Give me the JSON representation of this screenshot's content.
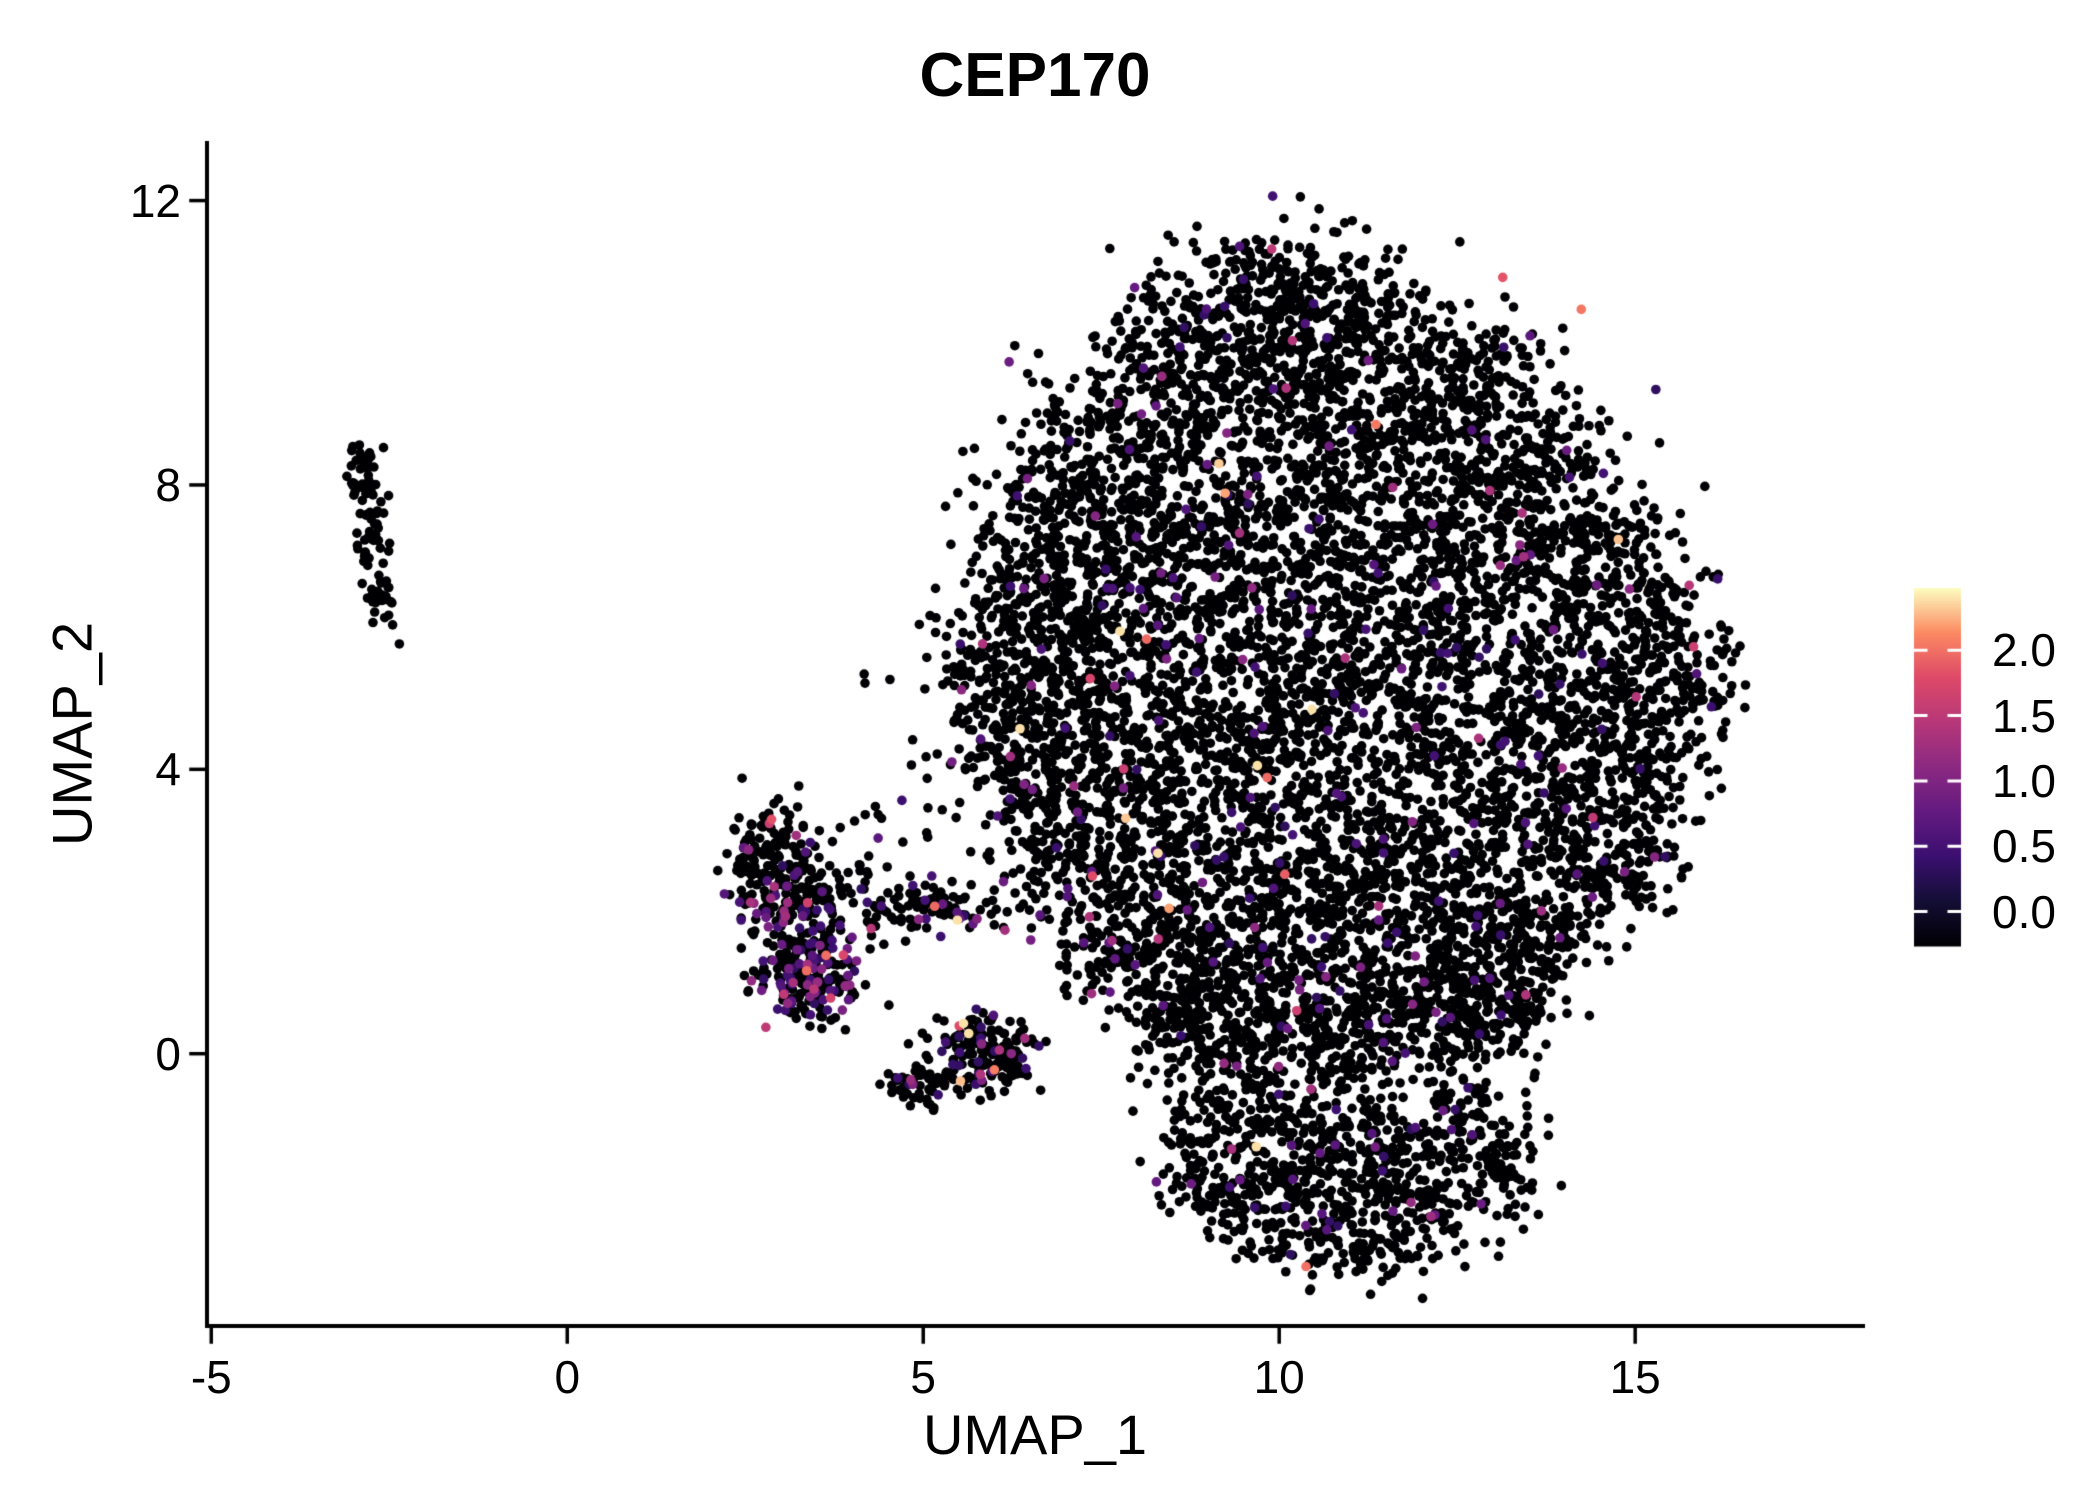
{
  "chart_data": {
    "type": "scatter",
    "title": "CEP170",
    "xlabel": "UMAP_1",
    "ylabel": "UMAP_2",
    "xlim": [
      -5.06,
      18.2
    ],
    "ylim": [
      -3.83,
      12.81
    ],
    "x_ticks": [
      -5,
      0,
      5,
      10,
      15
    ],
    "x_tick_labels": [
      "-5",
      "0",
      "5",
      "10",
      "15"
    ],
    "y_ticks": [
      0,
      4,
      8,
      12
    ],
    "y_tick_labels": [
      "0",
      "4",
      "8",
      "12"
    ],
    "grid": false,
    "point_color_default": "#000004",
    "point_radius_px": 4.8,
    "colorbar": {
      "position": "right",
      "tick_values": [
        2.0,
        1.5,
        1.0,
        0.5,
        0.0
      ],
      "tick_labels": [
        "2.0",
        "1.5",
        "1.0",
        "0.5",
        "0.0"
      ],
      "bar_value_top": 2.48,
      "bar_value_bottom": -0.26,
      "colormap": "magma",
      "colormap_stops": [
        "#000004",
        "#140e36",
        "#3b0f70",
        "#641a80",
        "#8c2981",
        "#b73779",
        "#de4968",
        "#fc8961",
        "#fcfdbf"
      ]
    },
    "colored_value_min": 0.3,
    "colored_value_max": 2.4,
    "clusters": [
      {
        "name": "left-satellite",
        "blobs": [
          [
            -2.85,
            8.1,
            0.13,
            0.35,
            45,
            0.02
          ],
          [
            -2.75,
            7.3,
            0.12,
            0.3,
            30,
            0.02
          ],
          [
            -2.62,
            6.35,
            0.1,
            0.25,
            30,
            0.02
          ]
        ]
      },
      {
        "name": "mid-left",
        "blobs": [
          [
            2.75,
            2.9,
            0.3,
            0.35,
            80,
            0.1
          ],
          [
            3.05,
            2.3,
            0.4,
            0.4,
            150,
            0.12
          ],
          [
            3.25,
            1.25,
            0.35,
            0.4,
            170,
            0.3
          ],
          [
            3.5,
            0.9,
            0.3,
            0.25,
            80,
            0.35
          ],
          [
            4.4,
            2.15,
            0.55,
            0.25,
            70,
            0.15
          ],
          [
            5.5,
            2.05,
            0.45,
            0.18,
            60,
            0.12
          ],
          [
            5.75,
            0.05,
            0.4,
            0.3,
            130,
            0.12
          ],
          [
            6.1,
            -0.1,
            0.25,
            0.25,
            60,
            0.1
          ],
          [
            4.95,
            -0.5,
            0.25,
            0.15,
            45,
            0.15
          ],
          [
            4.3,
            3.0,
            0.5,
            0.5,
            12,
            0.2
          ]
        ]
      },
      {
        "name": "main",
        "blobs": [
          [
            9.7,
            10.9,
            0.8,
            0.45,
            150,
            0.02
          ],
          [
            10.9,
            10.5,
            0.7,
            0.45,
            130,
            0.02
          ],
          [
            8.7,
            10.1,
            0.6,
            0.45,
            120,
            0.02
          ],
          [
            9.9,
            9.9,
            0.8,
            0.5,
            150,
            0.02
          ],
          [
            11.6,
            9.8,
            0.8,
            0.5,
            150,
            0.02
          ],
          [
            12.8,
            9.4,
            0.6,
            0.5,
            110,
            0.02
          ],
          [
            7.9,
            9.0,
            0.7,
            0.6,
            170,
            0.03
          ],
          [
            9.3,
            8.8,
            0.8,
            0.6,
            180,
            0.03
          ],
          [
            10.9,
            8.7,
            0.8,
            0.6,
            170,
            0.03
          ],
          [
            12.4,
            8.5,
            0.7,
            0.6,
            160,
            0.03
          ],
          [
            13.6,
            8.4,
            0.6,
            0.5,
            130,
            0.03
          ],
          [
            7.0,
            7.8,
            0.6,
            0.6,
            170,
            0.03
          ],
          [
            8.4,
            7.6,
            0.8,
            0.6,
            190,
            0.03
          ],
          [
            10.0,
            7.4,
            0.8,
            0.6,
            180,
            0.03
          ],
          [
            11.7,
            7.3,
            0.8,
            0.6,
            180,
            0.03
          ],
          [
            13.3,
            7.2,
            0.7,
            0.6,
            170,
            0.03
          ],
          [
            14.6,
            7.3,
            0.5,
            0.5,
            120,
            0.03
          ],
          [
            6.4,
            6.6,
            0.5,
            0.6,
            150,
            0.03
          ],
          [
            7.7,
            6.4,
            0.7,
            0.6,
            180,
            0.03
          ],
          [
            9.2,
            6.2,
            0.8,
            0.6,
            180,
            0.04
          ],
          [
            10.9,
            6.1,
            0.8,
            0.6,
            180,
            0.04
          ],
          [
            12.6,
            6.0,
            0.8,
            0.6,
            180,
            0.03
          ],
          [
            14.2,
            6.1,
            0.6,
            0.6,
            150,
            0.03
          ],
          [
            15.5,
            6.2,
            0.35,
            0.55,
            90,
            0.03
          ],
          [
            5.9,
            5.4,
            0.4,
            0.5,
            110,
            0.03
          ],
          [
            7.0,
            5.2,
            0.6,
            0.6,
            170,
            0.03
          ],
          [
            8.5,
            4.9,
            0.8,
            0.6,
            180,
            0.04
          ],
          [
            10.2,
            4.8,
            0.8,
            0.6,
            180,
            0.05
          ],
          [
            11.9,
            4.7,
            0.8,
            0.6,
            180,
            0.04
          ],
          [
            13.6,
            4.7,
            0.7,
            0.6,
            170,
            0.03
          ],
          [
            15.0,
            4.9,
            0.5,
            0.6,
            130,
            0.03
          ],
          [
            15.9,
            5.1,
            0.25,
            0.45,
            60,
            0.03
          ],
          [
            6.3,
            4.2,
            0.5,
            0.5,
            130,
            0.03
          ],
          [
            7.5,
            3.9,
            0.7,
            0.6,
            170,
            0.03
          ],
          [
            9.0,
            3.6,
            0.8,
            0.6,
            180,
            0.04
          ],
          [
            10.7,
            3.4,
            0.8,
            0.6,
            180,
            0.05
          ],
          [
            12.4,
            3.4,
            0.8,
            0.6,
            180,
            0.04
          ],
          [
            14.0,
            3.5,
            0.6,
            0.6,
            150,
            0.03
          ],
          [
            15.2,
            3.8,
            0.4,
            0.5,
            100,
            0.03
          ],
          [
            6.9,
            2.9,
            0.5,
            0.5,
            130,
            0.03
          ],
          [
            8.1,
            2.6,
            0.7,
            0.5,
            160,
            0.03
          ],
          [
            9.6,
            2.3,
            0.8,
            0.5,
            170,
            0.04
          ],
          [
            11.2,
            2.2,
            0.8,
            0.5,
            170,
            0.04
          ],
          [
            12.8,
            2.2,
            0.7,
            0.5,
            160,
            0.03
          ],
          [
            14.2,
            2.4,
            0.5,
            0.5,
            120,
            0.03
          ],
          [
            15.1,
            2.7,
            0.3,
            0.35,
            60,
            0.03
          ],
          [
            7.7,
            1.6,
            0.5,
            0.45,
            130,
            0.03
          ],
          [
            8.9,
            1.3,
            0.7,
            0.45,
            160,
            0.04
          ],
          [
            10.4,
            1.1,
            0.7,
            0.45,
            160,
            0.04
          ],
          [
            11.9,
            1.1,
            0.7,
            0.45,
            160,
            0.04
          ],
          [
            13.3,
            1.3,
            0.5,
            0.4,
            120,
            0.03
          ],
          [
            8.6,
            0.5,
            0.5,
            0.4,
            120,
            0.04
          ],
          [
            9.8,
            0.2,
            0.7,
            0.4,
            150,
            0.05
          ],
          [
            11.3,
            0.2,
            0.7,
            0.4,
            150,
            0.04
          ],
          [
            12.6,
            0.4,
            0.5,
            0.35,
            110,
            0.03
          ],
          [
            13.4,
            0.6,
            0.3,
            0.3,
            60,
            0.03
          ]
        ]
      },
      {
        "name": "bottom-lobe",
        "blobs": [
          [
            9.3,
            -0.9,
            0.45,
            0.45,
            110,
            0.04
          ],
          [
            10.3,
            -1.2,
            0.55,
            0.45,
            130,
            0.04
          ],
          [
            11.5,
            -1.3,
            0.55,
            0.45,
            130,
            0.04
          ],
          [
            12.6,
            -1.0,
            0.4,
            0.4,
            90,
            0.04
          ],
          [
            9.7,
            -2.1,
            0.45,
            0.4,
            100,
            0.04
          ],
          [
            10.8,
            -2.3,
            0.55,
            0.4,
            110,
            0.05
          ],
          [
            12.0,
            -2.1,
            0.5,
            0.4,
            100,
            0.05
          ],
          [
            13.0,
            -1.6,
            0.35,
            0.4,
            70,
            0.03
          ],
          [
            8.9,
            -1.7,
            0.3,
            0.35,
            60,
            0.03
          ],
          [
            11.3,
            -2.8,
            0.5,
            0.2,
            60,
            0.03
          ]
        ]
      },
      {
        "name": "outliers",
        "blobs": [
          [
            15.3,
            9.35,
            0.04,
            0.04,
            1,
            1.0
          ],
          [
            4.15,
            5.3,
            0.03,
            0.03,
            2,
            0.0
          ],
          [
            4.55,
            5.25,
            0.03,
            0.03,
            1,
            0.0
          ],
          [
            4.2,
            3.35,
            0.03,
            0.03,
            1,
            0.0
          ]
        ]
      }
    ]
  }
}
